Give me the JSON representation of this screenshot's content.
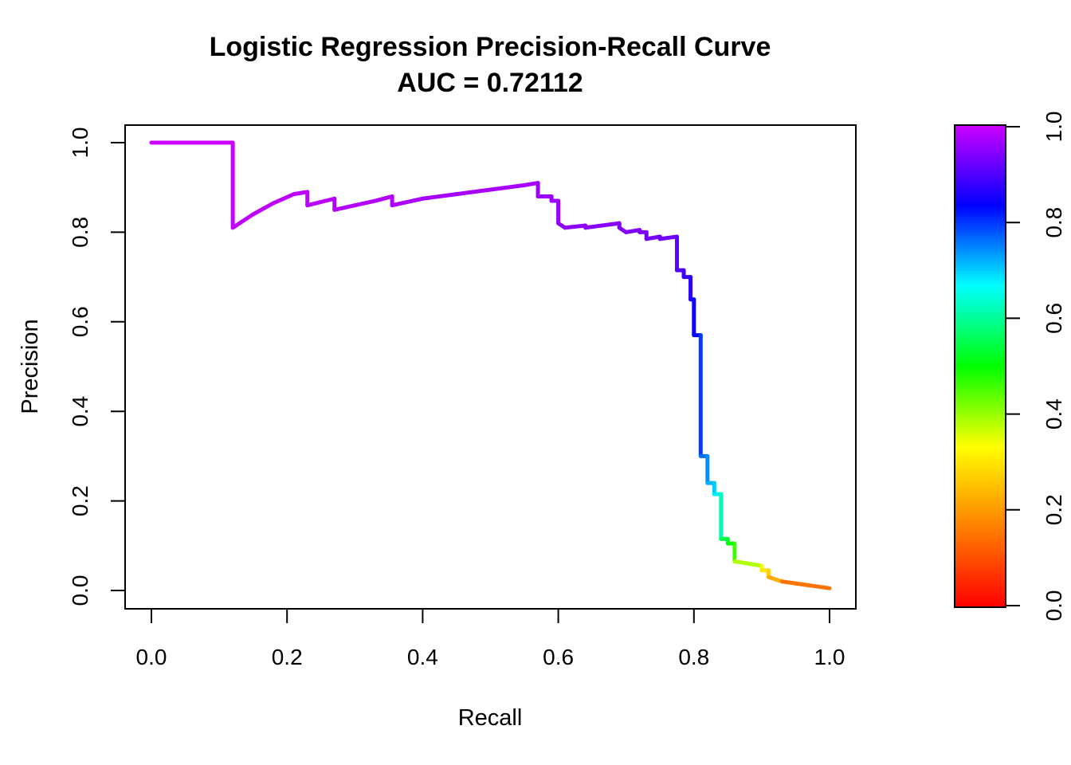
{
  "chart_data": {
    "type": "line",
    "title": "Logistic Regression Precision-Recall Curve",
    "subtitle": "AUC = 0.72112",
    "xlabel": "Recall",
    "ylabel": "Precision",
    "xlim": [
      0,
      1
    ],
    "ylim": [
      0,
      1
    ],
    "xticks": [
      "0.0",
      "0.2",
      "0.4",
      "0.6",
      "0.8",
      "1.0"
    ],
    "yticks": [
      "0.0",
      "0.2",
      "0.4",
      "0.6",
      "0.8",
      "1.0"
    ],
    "grid": false,
    "colorbar": {
      "range": [
        0,
        1
      ],
      "ticks": [
        "0.0",
        "0.2",
        "0.4",
        "0.6",
        "0.8",
        "1.0"
      ],
      "gradient": [
        "#ff0000",
        "#ff8000",
        "#ffff00",
        "#00ff00",
        "#00ffff",
        "#0000ff",
        "#cc00ff"
      ]
    },
    "series": [
      {
        "x": [
          0.0,
          0.12,
          0.12,
          0.125,
          0.15,
          0.18,
          0.21,
          0.23,
          0.23,
          0.27,
          0.27,
          0.3,
          0.33,
          0.355,
          0.355,
          0.4,
          0.45,
          0.5,
          0.55,
          0.57,
          0.57,
          0.59,
          0.59,
          0.6,
          0.6,
          0.61,
          0.64,
          0.64,
          0.69,
          0.69,
          0.7,
          0.72,
          0.72,
          0.73,
          0.73,
          0.75,
          0.75,
          0.775,
          0.775,
          0.785,
          0.785,
          0.795,
          0.795,
          0.8,
          0.8,
          0.81,
          0.81,
          0.82,
          0.82,
          0.83,
          0.83,
          0.84,
          0.84,
          0.85,
          0.85,
          0.86,
          0.86,
          0.9,
          0.9,
          0.91,
          0.91,
          0.93,
          1.0
        ],
        "y": [
          1.0,
          1.0,
          0.81,
          0.815,
          0.84,
          0.865,
          0.885,
          0.89,
          0.86,
          0.875,
          0.85,
          0.86,
          0.87,
          0.88,
          0.86,
          0.875,
          0.885,
          0.895,
          0.905,
          0.91,
          0.88,
          0.88,
          0.87,
          0.87,
          0.82,
          0.81,
          0.815,
          0.81,
          0.82,
          0.81,
          0.8,
          0.805,
          0.8,
          0.8,
          0.785,
          0.79,
          0.785,
          0.79,
          0.715,
          0.715,
          0.7,
          0.7,
          0.65,
          0.65,
          0.57,
          0.57,
          0.3,
          0.3,
          0.24,
          0.24,
          0.215,
          0.215,
          0.115,
          0.115,
          0.105,
          0.105,
          0.065,
          0.055,
          0.045,
          0.045,
          0.03,
          0.02,
          0.005
        ],
        "threshold": [
          1.0,
          1.0,
          0.99,
          0.99,
          0.99,
          0.99,
          0.99,
          0.99,
          0.99,
          0.98,
          0.98,
          0.98,
          0.98,
          0.98,
          0.98,
          0.97,
          0.97,
          0.97,
          0.97,
          0.97,
          0.96,
          0.96,
          0.96,
          0.96,
          0.95,
          0.95,
          0.95,
          0.95,
          0.94,
          0.94,
          0.94,
          0.94,
          0.94,
          0.93,
          0.93,
          0.93,
          0.93,
          0.92,
          0.9,
          0.9,
          0.88,
          0.88,
          0.86,
          0.86,
          0.83,
          0.83,
          0.76,
          0.76,
          0.72,
          0.72,
          0.68,
          0.68,
          0.55,
          0.55,
          0.5,
          0.5,
          0.42,
          0.35,
          0.3,
          0.3,
          0.25,
          0.2,
          0.1
        ]
      }
    ]
  }
}
